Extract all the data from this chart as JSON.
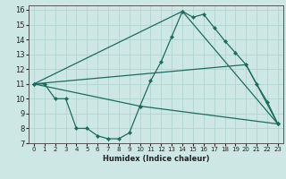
{
  "xlabel": "Humidex (Indice chaleur)",
  "xlim": [
    -0.5,
    23.5
  ],
  "ylim": [
    7,
    16.3
  ],
  "xticks": [
    0,
    1,
    2,
    3,
    4,
    5,
    6,
    7,
    8,
    9,
    10,
    11,
    12,
    13,
    14,
    15,
    16,
    17,
    18,
    19,
    20,
    21,
    22,
    23
  ],
  "yticks": [
    7,
    8,
    9,
    10,
    11,
    12,
    13,
    14,
    15,
    16
  ],
  "bg_color": "#cde8e4",
  "grid_color": "#b0d4ce",
  "line_color": "#1e6b5e",
  "series": [
    {
      "x": [
        0,
        1,
        2,
        3,
        4,
        5,
        6,
        7,
        8,
        9,
        10,
        11,
        12,
        13,
        14,
        15,
        16,
        17,
        18,
        19,
        20,
        21,
        22,
        23
      ],
      "y": [
        11,
        11,
        10,
        10,
        8,
        8,
        7.5,
        7.3,
        7.3,
        7.7,
        9.5,
        11.2,
        12.5,
        14.2,
        15.9,
        15.5,
        15.7,
        14.8,
        13.9,
        13.1,
        12.3,
        11.0,
        9.8,
        8.3
      ]
    },
    {
      "x": [
        0,
        14,
        23
      ],
      "y": [
        11,
        15.9,
        8.3
      ]
    },
    {
      "x": [
        0,
        20,
        23
      ],
      "y": [
        11,
        12.3,
        8.3
      ]
    },
    {
      "x": [
        0,
        10,
        23
      ],
      "y": [
        11,
        9.5,
        8.3
      ]
    }
  ]
}
